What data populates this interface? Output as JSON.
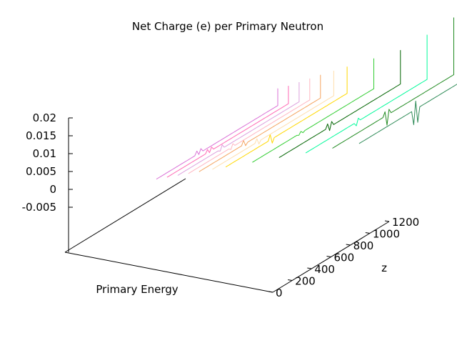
{
  "chart_data": {
    "type": "line",
    "title": "Net Charge (e) per Primary Neutron",
    "xlabel": "Primary Energy",
    "zlabel": "z",
    "ylim": [
      -0.005,
      0.02
    ],
    "y_ticks": [
      "0.02",
      "0.015",
      "0.01",
      "0.005",
      "0",
      "-0.005"
    ],
    "z_ticks": [
      "0",
      "200",
      "400",
      "600",
      "800",
      "1000",
      "1200"
    ],
    "zlim": [
      0,
      1200
    ],
    "grid": false,
    "legend": "none",
    "series": [
      {
        "z": 1100,
        "color": "#2e8b57",
        "end_value": 0.0225,
        "spike": {
          "pos": 0.47,
          "up": 0.0023,
          "down": -0.004
        }
      },
      {
        "z": 1000,
        "color": "#228b22",
        "end_value": 0.016,
        "spike": {
          "pos": 0.45,
          "up": 0.0013,
          "down": -0.0028
        }
      },
      {
        "z": 900,
        "color": "#00fa9a",
        "end_value": 0.0125,
        "spike": {
          "pos": 0.43,
          "up": 0.0008,
          "down": -0.001
        }
      },
      {
        "z": 800,
        "color": "#006400",
        "end_value": 0.0095,
        "spike": {
          "pos": 0.42,
          "up": 0.0012,
          "down": -0.001
        }
      },
      {
        "z": 700,
        "color": "#32cd32",
        "end_value": 0.0085,
        "spike": {
          "pos": 0.4,
          "up": 0.0004,
          "down": -0.0003
        }
      },
      {
        "z": 600,
        "color": "#ffd700",
        "end_value": 0.0075,
        "spike": {
          "pos": 0.38,
          "up": 0.0015,
          "down": -0.0012
        }
      },
      {
        "z": 550,
        "color": "#ffdead",
        "end_value": 0.007,
        "spike": {
          "pos": 0.37,
          "up": 0.001,
          "down": -0.0008
        }
      },
      {
        "z": 500,
        "color": "#f4a460",
        "end_value": 0.0065,
        "spike": {
          "pos": 0.37,
          "up": 0.0012,
          "down": -0.0006
        }
      },
      {
        "z": 460,
        "color": "#ffb6c1",
        "end_value": 0.006,
        "spike": {
          "pos": 0.36,
          "up": 0.0008,
          "down": -0.0005
        }
      },
      {
        "z": 420,
        "color": "#dda0dd",
        "end_value": 0.0055,
        "spike": {
          "pos": 0.36,
          "up": 0.001,
          "down": -0.0004
        }
      },
      {
        "z": 380,
        "color": "#ff69b4",
        "end_value": 0.005,
        "spike": {
          "pos": 0.35,
          "up": 0.0009,
          "down": -0.0003
        }
      },
      {
        "z": 340,
        "color": "#da70d6",
        "end_value": 0.0048,
        "spike": {
          "pos": 0.35,
          "up": 0.001,
          "down": -0.0003
        }
      }
    ]
  }
}
